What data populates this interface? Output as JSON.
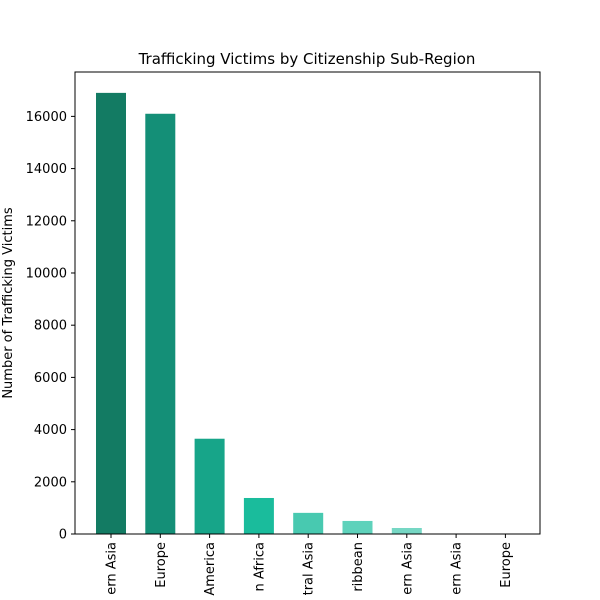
{
  "chart_data": {
    "type": "bar",
    "title": "Trafficking Victims by Citizenship Sub-Region",
    "xlabel": "",
    "ylabel": "Number of Trafficking Victims",
    "categories": [
      "ern Asia",
      "Europe",
      "America",
      "n Africa",
      "tral Asia",
      "ribbean",
      "ern Asia",
      "ern Asia",
      "Europe"
    ],
    "values": [
      16900,
      16100,
      3650,
      1380,
      810,
      500,
      230,
      20,
      10
    ],
    "colors": [
      "#137b63",
      "#148f77",
      "#17a589",
      "#1abc9c",
      "#48c9b0",
      "#5ed2bb",
      "#76d7c4",
      "#a3e4d7",
      "#c8efe6"
    ],
    "yticks": [
      0,
      2000,
      4000,
      6000,
      8000,
      10000,
      12000,
      14000,
      16000
    ],
    "ylim": [
      0,
      17700
    ],
    "grid": false,
    "legend": false
  }
}
